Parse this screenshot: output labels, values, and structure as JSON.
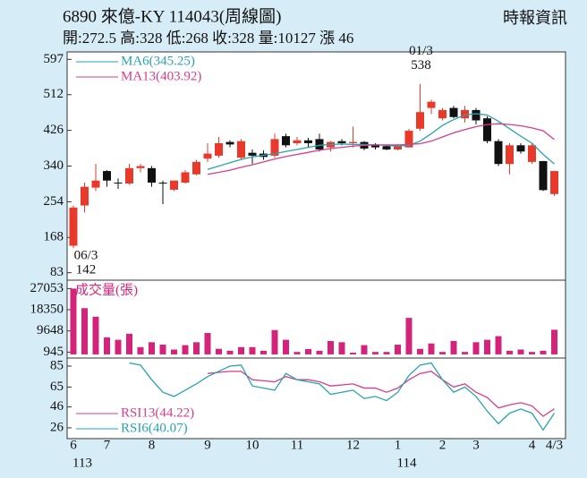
{
  "header": {
    "title": "6890  來億-KY 114043(周線圖)",
    "quote": "開:272.5 高:328 低:268 收:328 量:10127 漲 46",
    "source": "時報資訊"
  },
  "chart_data": [
    {
      "type": "candlestick",
      "categories": [
        "6",
        null,
        null,
        "7",
        null,
        null,
        null,
        "8",
        null,
        null,
        null,
        null,
        "9",
        null,
        null,
        null,
        "10",
        null,
        null,
        null,
        "11",
        null,
        null,
        null,
        null,
        "12",
        null,
        null,
        null,
        "1",
        null,
        null,
        null,
        "2",
        null,
        null,
        "3",
        null,
        null,
        null,
        null,
        "4",
        null,
        "4/3"
      ],
      "year_labels": [
        "113",
        null,
        null,
        null,
        null,
        null,
        null,
        null,
        null,
        null,
        null,
        null,
        null,
        null,
        null,
        null,
        null,
        null,
        null,
        null,
        null,
        null,
        null,
        null,
        null,
        null,
        null,
        null,
        null,
        "114",
        null,
        null,
        null,
        null,
        null,
        null,
        null,
        null,
        null,
        null,
        null,
        null,
        null,
        null
      ],
      "open": [
        148,
        245,
        288,
        328,
        300,
        298,
        335,
        335,
        300,
        283,
        300,
        320,
        358,
        365,
        398,
        360,
        372,
        370,
        365,
        412,
        395,
        402,
        405,
        385,
        400,
        395,
        398,
        392,
        388,
        380,
        385,
        430,
        480,
        455,
        480,
        455,
        475,
        455,
        400,
        345,
        390,
        350,
        352,
        272.5
      ],
      "high": [
        245,
        300,
        345,
        330,
        310,
        345,
        345,
        340,
        305,
        305,
        330,
        355,
        395,
        410,
        402,
        405,
        380,
        378,
        418,
        418,
        410,
        408,
        418,
        400,
        405,
        435,
        400,
        395,
        392,
        392,
        430,
        538,
        500,
        480,
        485,
        485,
        480,
        460,
        405,
        395,
        395,
        395,
        352,
        328
      ],
      "low": [
        142,
        228,
        280,
        290,
        285,
        295,
        325,
        290,
        248,
        280,
        298,
        318,
        350,
        360,
        385,
        355,
        345,
        355,
        360,
        385,
        390,
        385,
        375,
        375,
        390,
        385,
        378,
        380,
        378,
        378,
        385,
        425,
        465,
        450,
        455,
        445,
        440,
        395,
        340,
        320,
        370,
        345,
        280,
        268
      ],
      "close": [
        240,
        290,
        305,
        305,
        298,
        335,
        340,
        300,
        298,
        305,
        325,
        350,
        370,
        395,
        392,
        400,
        365,
        362,
        405,
        390,
        402,
        395,
        380,
        398,
        395,
        398,
        382,
        385,
        380,
        390,
        425,
        470,
        495,
        475,
        458,
        475,
        450,
        400,
        345,
        390,
        375,
        390,
        282,
        328
      ],
      "up_color": "#e8392b",
      "down_color": "#111111",
      "series": [
        {
          "name": "MA6(345.25)",
          "color": "#27a3b0",
          "values": [
            null,
            null,
            null,
            null,
            null,
            null,
            null,
            null,
            null,
            null,
            null,
            null,
            332,
            340,
            348,
            356,
            362,
            366,
            370,
            375,
            380,
            385,
            390,
            392,
            393,
            392,
            392,
            391,
            390,
            388,
            390,
            400,
            418,
            438,
            452,
            463,
            466,
            463,
            448,
            430,
            412,
            395,
            368,
            345.25
          ]
        },
        {
          "name": "MA13(403.92)",
          "color": "#d63d8a",
          "values": [
            null,
            null,
            null,
            null,
            null,
            null,
            null,
            null,
            null,
            null,
            null,
            null,
            320,
            325,
            330,
            337,
            343,
            350,
            357,
            363,
            368,
            373,
            378,
            382,
            385,
            388,
            390,
            391,
            391,
            391,
            392,
            394,
            400,
            410,
            420,
            428,
            435,
            440,
            442,
            440,
            437,
            432,
            425,
            403.92
          ]
        }
      ],
      "annotations": [
        {
          "label": "01/3",
          "value": 538
        },
        {
          "label": "06/3",
          "value": 142
        }
      ],
      "ylim": [
        65,
        615
      ],
      "yticks": [
        597,
        512,
        426,
        340,
        254,
        168,
        83
      ]
    },
    {
      "type": "bar",
      "title": "成交量(張)",
      "color": "#d4237a",
      "values": [
        27053,
        19000,
        15500,
        7000,
        6000,
        8500,
        3000,
        5000,
        4000,
        2000,
        3800,
        5000,
        8800,
        2300,
        1500,
        3000,
        3000,
        1500,
        10000,
        6000,
        1000,
        2200,
        1500,
        5500,
        5000,
        700,
        3800,
        1000,
        1000,
        4000,
        15000,
        2300,
        4500,
        1000,
        5500,
        1000,
        5000,
        6000,
        7500,
        1500,
        2000,
        1000,
        1500,
        10127
      ],
      "ylim": [
        -1500,
        30500
      ],
      "yticks": [
        27053,
        18350,
        9648,
        945
      ]
    },
    {
      "type": "line",
      "series": [
        {
          "name": "RSI13(44.22)",
          "color": "#d63d8a",
          "values": [
            null,
            null,
            null,
            null,
            null,
            null,
            null,
            null,
            null,
            null,
            null,
            null,
            78,
            79,
            80,
            80,
            72,
            71,
            70,
            75,
            72,
            72,
            70,
            66,
            67,
            68,
            64,
            64,
            60,
            64,
            72,
            78,
            80,
            72,
            65,
            68,
            60,
            55,
            45,
            48,
            50,
            47,
            37,
            44.22
          ]
        },
        {
          "name": "RSI6(40.07)",
          "color": "#27a3b0",
          "values": [
            null,
            null,
            null,
            null,
            null,
            88,
            86,
            72,
            60,
            56,
            62,
            68,
            75,
            80,
            85,
            86,
            66,
            64,
            62,
            78,
            72,
            70,
            68,
            58,
            60,
            62,
            54,
            56,
            52,
            60,
            76,
            86,
            88,
            72,
            60,
            65,
            56,
            42,
            30,
            40,
            44,
            40,
            24,
            40.07
          ]
        }
      ],
      "ylim": [
        15.7,
        92.7
      ],
      "yticks": [
        85,
        65,
        46,
        26
      ]
    }
  ]
}
